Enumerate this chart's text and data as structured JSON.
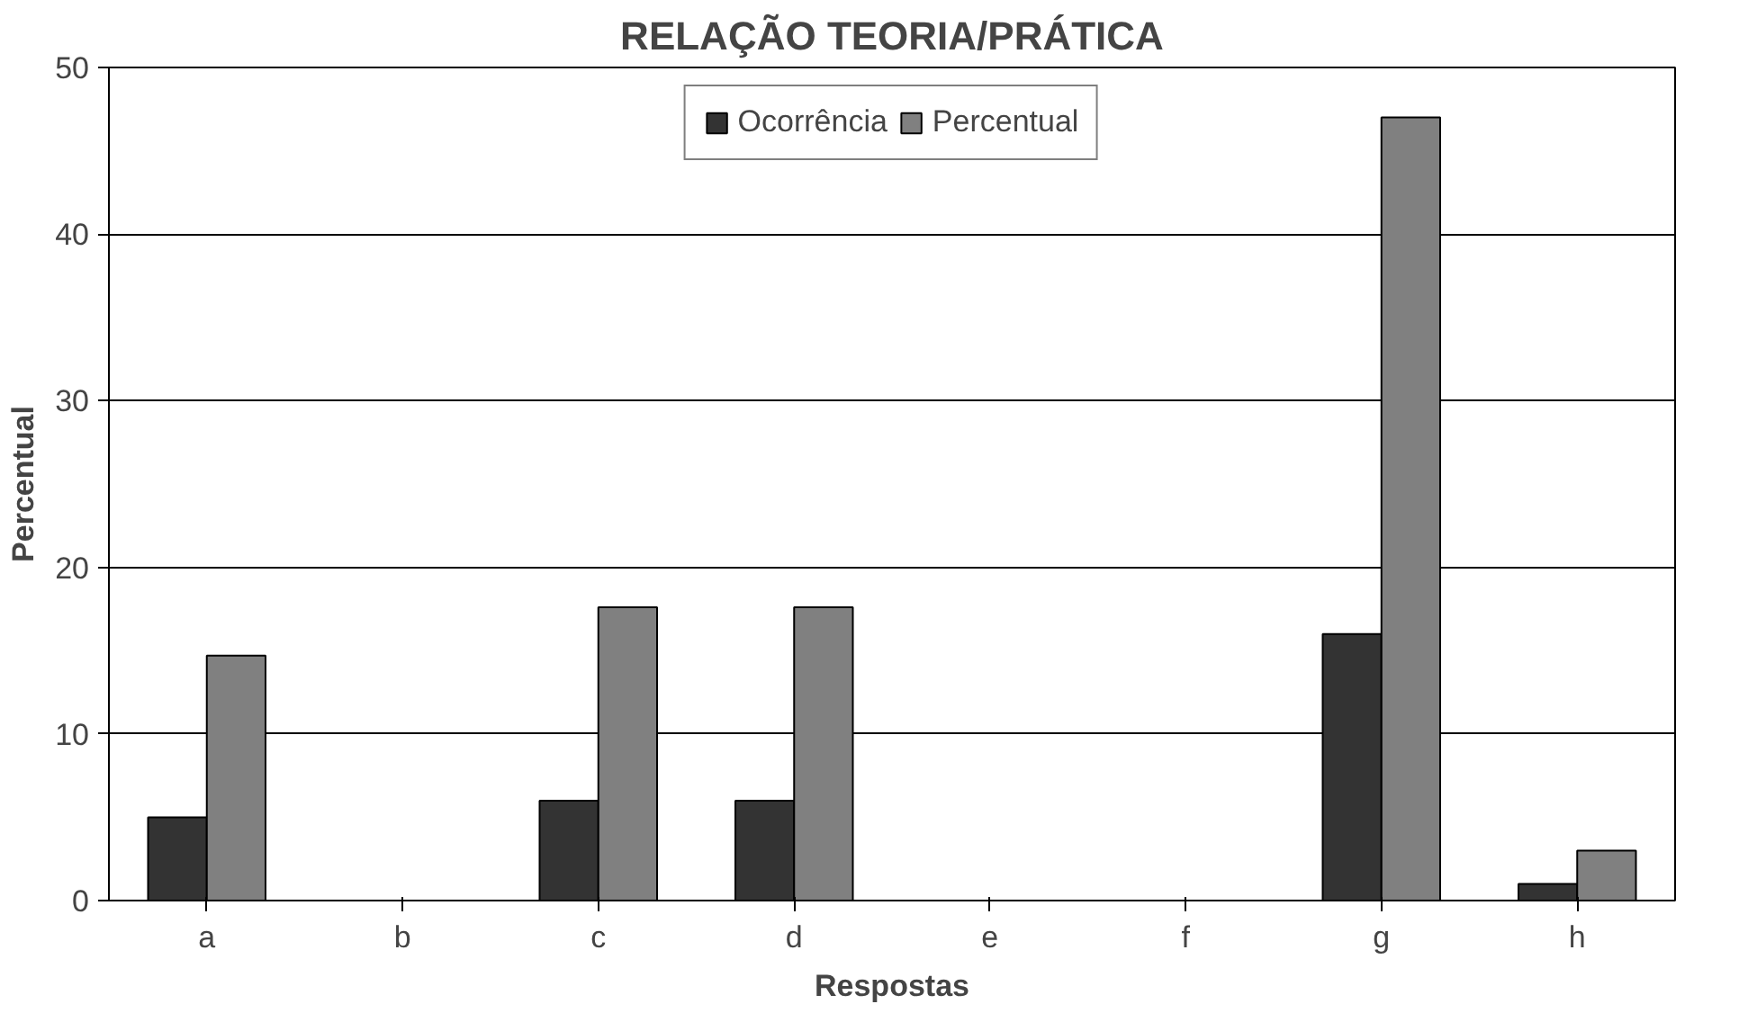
{
  "chart_data": {
    "type": "bar",
    "title": "RELAÇÃO TEORIA/PRÁTICA",
    "xlabel": "Respostas",
    "ylabel": "Percentual",
    "categories": [
      "a",
      "b",
      "c",
      "d",
      "e",
      "f",
      "g",
      "h"
    ],
    "series": [
      {
        "name": "Ocorrência",
        "color": "#333333",
        "values": [
          5,
          0,
          6,
          6,
          0,
          0,
          16,
          1
        ]
      },
      {
        "name": "Percentual",
        "color": "#808080",
        "values": [
          14.7,
          0,
          17.6,
          17.6,
          0,
          0,
          47,
          3
        ]
      }
    ],
    "ylim": [
      0,
      50
    ],
    "yticks": [
      0,
      10,
      20,
      30,
      40,
      50
    ],
    "grid": "y",
    "legend": "top"
  }
}
